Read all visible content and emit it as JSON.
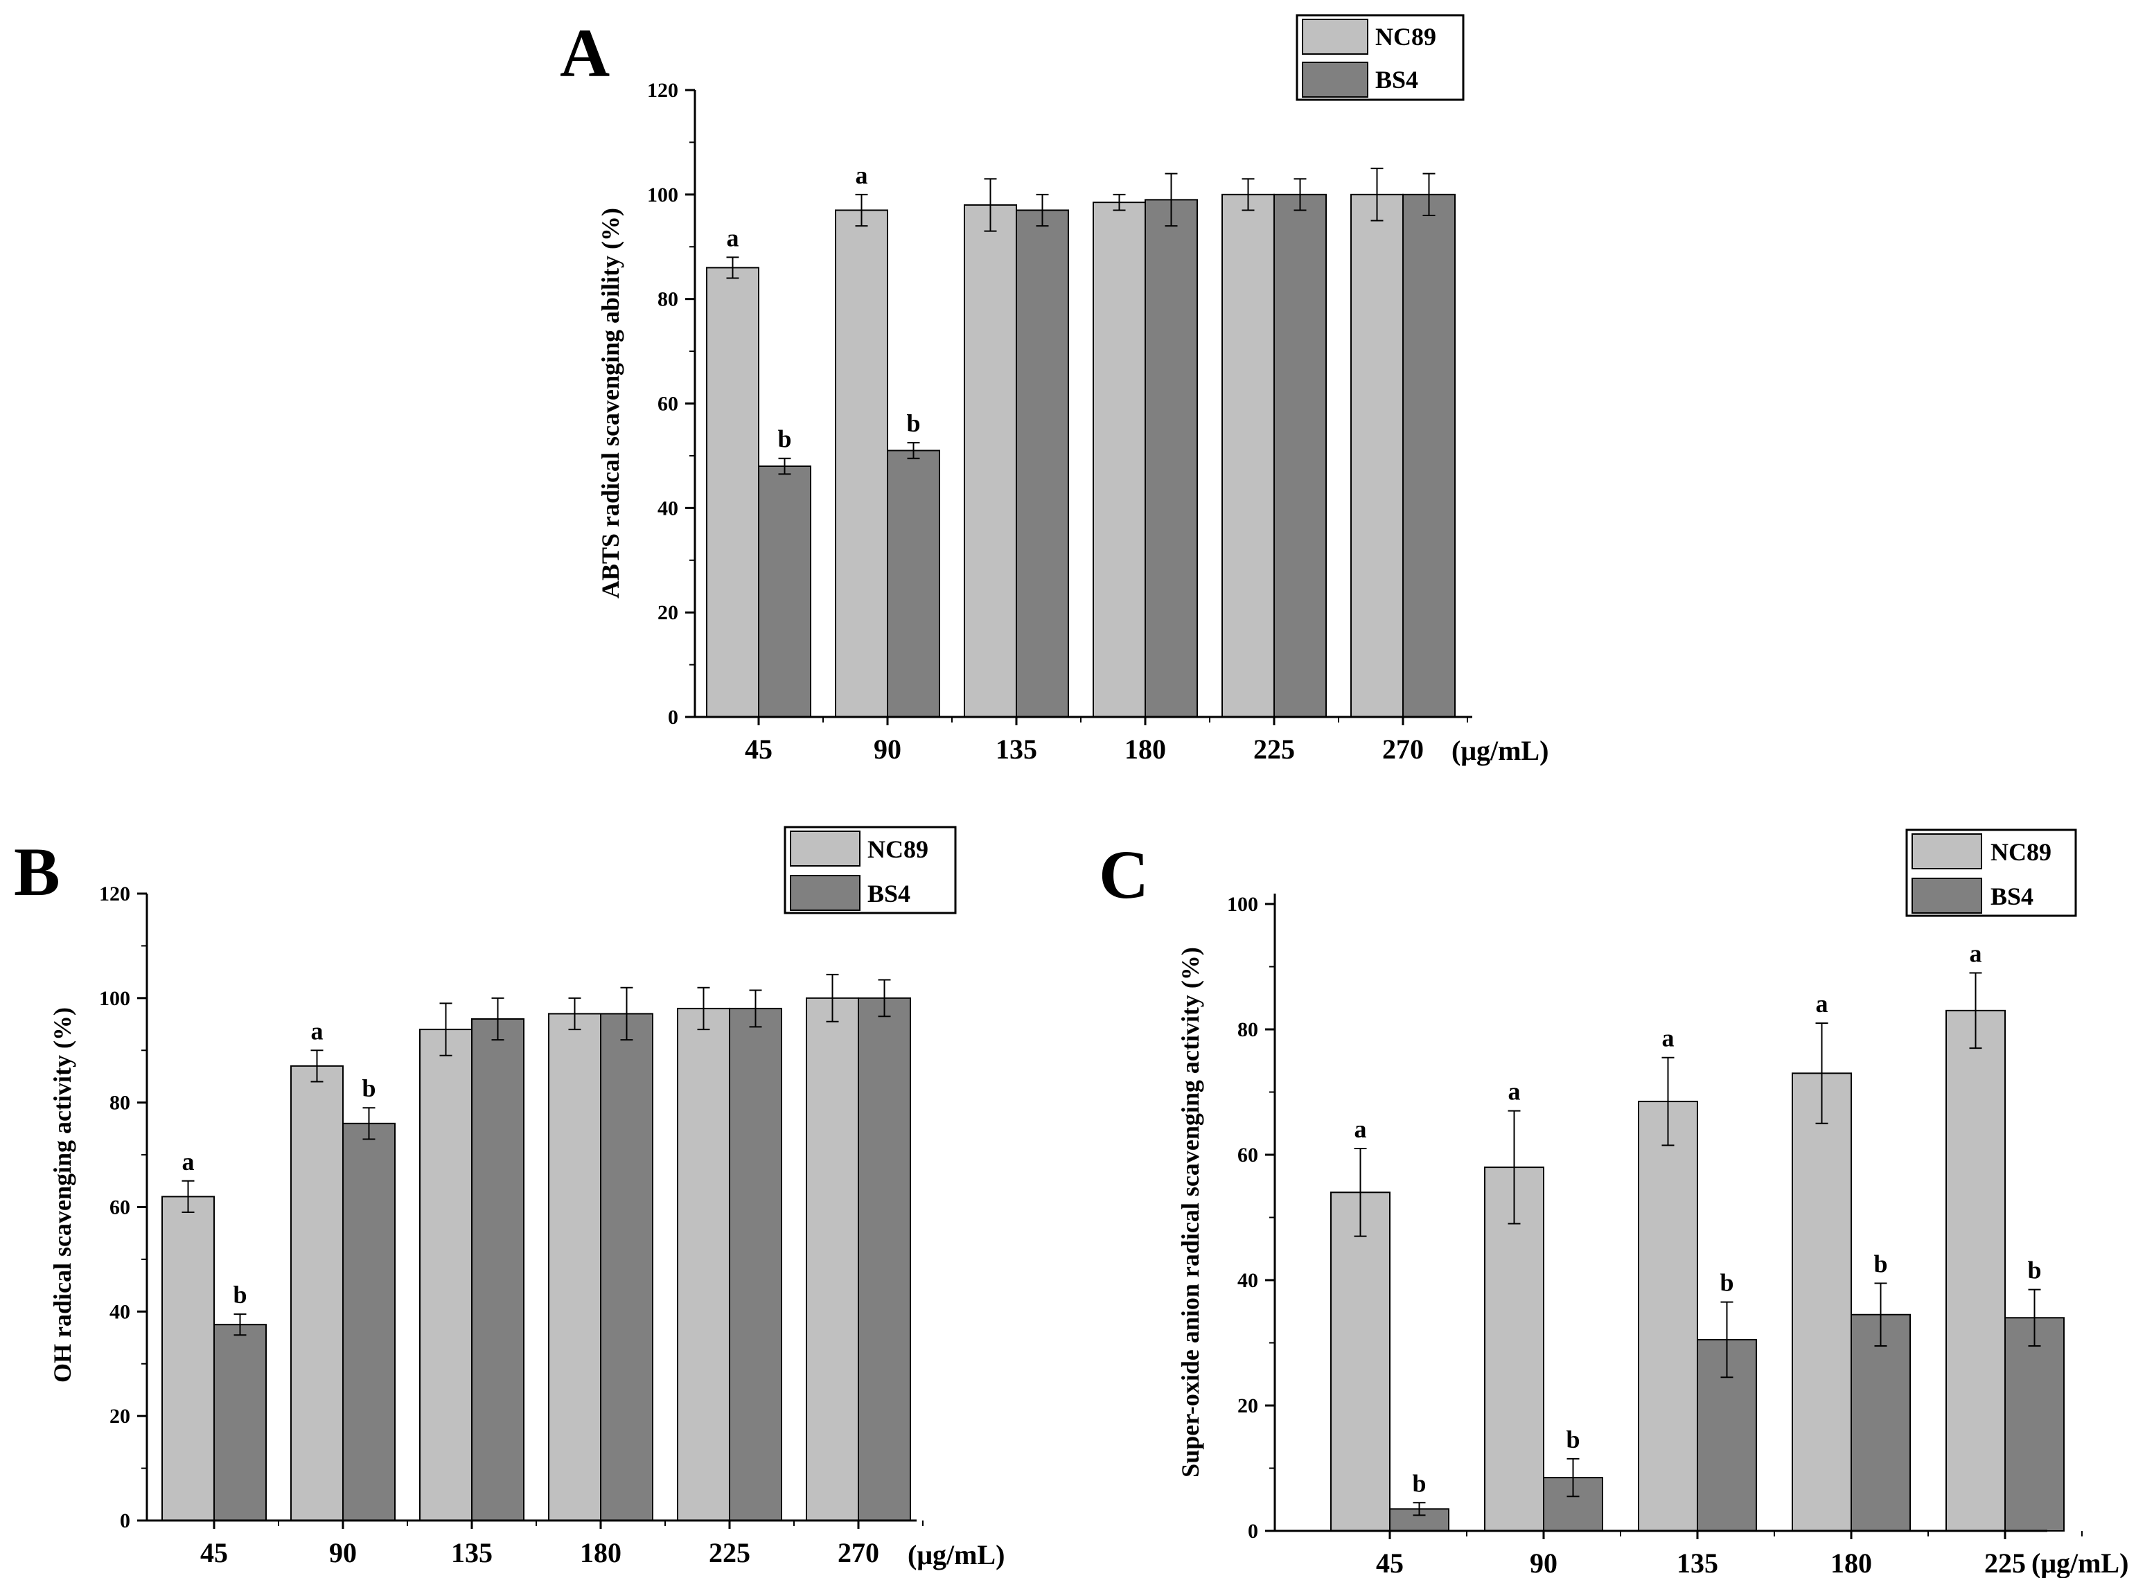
{
  "colors": {
    "nc89": "#c0c0c0",
    "bs4": "#808080",
    "axis": "#000000"
  },
  "chart_data": [
    {
      "panel": "A",
      "type": "bar",
      "ylabel": "ABTS radical scavenging ability (%)",
      "xunit": "(μg/mL)",
      "categories": [
        "45",
        "90",
        "135",
        "180",
        "225",
        "270"
      ],
      "ylim": [
        0,
        120
      ],
      "yticks": [
        0,
        20,
        40,
        60,
        80,
        100,
        120
      ],
      "series": [
        {
          "name": "NC89",
          "values": [
            86,
            97,
            98,
            98.5,
            100,
            100
          ],
          "errors": [
            2,
            3,
            5,
            1.5,
            3,
            5
          ],
          "letters": [
            "a",
            "a",
            "",
            "",
            "",
            ""
          ]
        },
        {
          "name": "BS4",
          "values": [
            48,
            51,
            97,
            99,
            100,
            100
          ],
          "errors": [
            1.5,
            1.5,
            3,
            5,
            3,
            4
          ],
          "letters": [
            "b",
            "b",
            "",
            "",
            "",
            ""
          ]
        }
      ],
      "legend": "top-right"
    },
    {
      "panel": "B",
      "type": "bar",
      "ylabel": "OH radical scavenging activity (%)",
      "xunit": "(μg/mL)",
      "categories": [
        "45",
        "90",
        "135",
        "180",
        "225",
        "270"
      ],
      "ylim": [
        0,
        120
      ],
      "yticks": [
        0,
        20,
        40,
        60,
        80,
        100,
        120
      ],
      "series": [
        {
          "name": "NC89",
          "values": [
            62,
            87,
            94,
            97,
            98,
            100
          ],
          "errors": [
            3,
            3,
            5,
            3,
            4,
            4.5
          ],
          "letters": [
            "a",
            "a",
            "",
            "",
            "",
            ""
          ]
        },
        {
          "name": "BS4",
          "values": [
            37.5,
            76,
            96,
            97,
            98,
            100
          ],
          "errors": [
            2,
            3,
            4,
            5,
            3.5,
            3.5
          ],
          "letters": [
            "b",
            "b",
            "",
            "",
            "",
            ""
          ]
        }
      ],
      "legend": "top-right"
    },
    {
      "panel": "C",
      "type": "bar",
      "ylabel": "Super-oxide anion radical scavenging activity (%)",
      "xunit": "(μg/mL)",
      "categories": [
        "45",
        "90",
        "135",
        "180",
        "225"
      ],
      "ylim": [
        0,
        100
      ],
      "yticks": [
        0,
        20,
        40,
        60,
        80,
        100
      ],
      "series": [
        {
          "name": "NC89",
          "values": [
            54,
            58,
            68.5,
            73,
            83
          ],
          "errors": [
            7,
            9,
            7,
            8,
            6
          ],
          "letters": [
            "a",
            "a",
            "a",
            "a",
            "a"
          ]
        },
        {
          "name": "BS4",
          "values": [
            3.5,
            8.5,
            30.5,
            34.5,
            34
          ],
          "errors": [
            1,
            3,
            6,
            5,
            4.5
          ],
          "letters": [
            "b",
            "b",
            "b",
            "b",
            "b"
          ]
        }
      ],
      "legend": "top-right"
    }
  ]
}
